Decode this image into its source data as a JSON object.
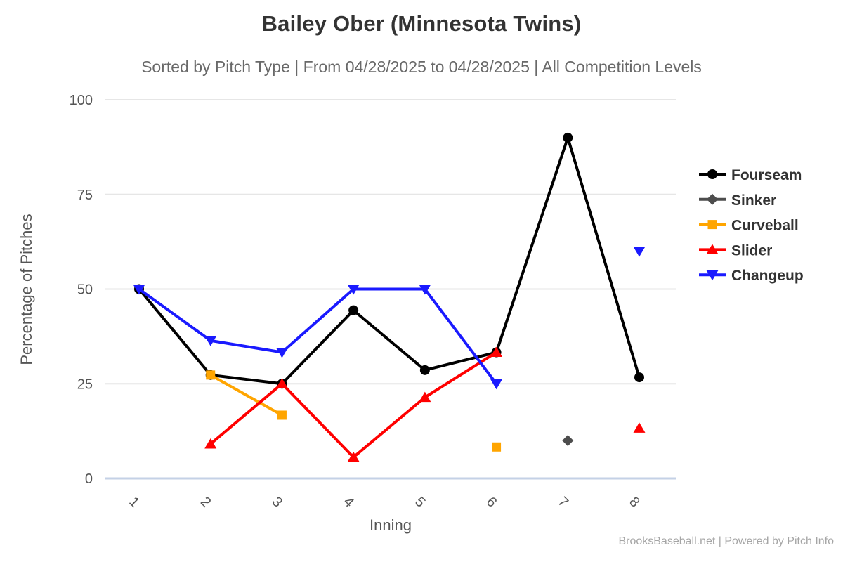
{
  "header": {
    "title": "Bailey Ober (Minnesota Twins)",
    "subtitle": "Sorted by Pitch Type | From 04/28/2025 to 04/28/2025 | All Competition Levels"
  },
  "footer": {
    "text": "BrooksBaseball.net | Powered by Pitch Info"
  },
  "colors": {
    "grid_line": "#e6e6e6",
    "axis_line": "#c4d1e6",
    "tick_text": "#555555",
    "legend_text": "#333333",
    "title_text": "#333333",
    "subtitle_text": "#696969",
    "footer_text": "#a5a5a5"
  },
  "chart_data": {
    "type": "line",
    "title": "Bailey Ober (Minnesota Twins)",
    "xlabel": "Inning",
    "ylabel": "Percentage of Pitches",
    "x_ticks": [
      1,
      2,
      3,
      4,
      5,
      6,
      7,
      8
    ],
    "y_ticks": [
      0,
      25,
      50,
      75,
      100
    ],
    "ylim": [
      0,
      100
    ],
    "grid": true,
    "legend_position": "right",
    "series": [
      {
        "name": "Fourseam",
        "color": "#000000",
        "marker": "circle",
        "runs": [
          [
            [
              1,
              50
            ],
            [
              2,
              27.3
            ],
            [
              3,
              25
            ],
            [
              4,
              44.4
            ],
            [
              5,
              28.6
            ],
            [
              6,
              33.3
            ],
            [
              7,
              90
            ],
            [
              8,
              26.7
            ]
          ]
        ]
      },
      {
        "name": "Sinker",
        "color": "#4d4d4d",
        "marker": "diamond",
        "runs": [
          [
            [
              7,
              10
            ]
          ]
        ]
      },
      {
        "name": "Curveball",
        "color": "#ffa500",
        "marker": "square",
        "runs": [
          [
            [
              2,
              27.3
            ],
            [
              3,
              16.7
            ]
          ],
          [
            [
              6,
              8.3
            ]
          ]
        ]
      },
      {
        "name": "Slider",
        "color": "#ff0000",
        "marker": "triangle-up",
        "runs": [
          [
            [
              2,
              9.1
            ],
            [
              3,
              25
            ],
            [
              4,
              5.6
            ],
            [
              5,
              21.4
            ],
            [
              6,
              33.3
            ]
          ],
          [
            [
              8,
              13.3
            ]
          ]
        ]
      },
      {
        "name": "Changeup",
        "color": "#1a1aff",
        "marker": "triangle-down",
        "runs": [
          [
            [
              1,
              50
            ],
            [
              2,
              36.4
            ],
            [
              3,
              33.3
            ],
            [
              4,
              50
            ],
            [
              5,
              50
            ],
            [
              6,
              25
            ]
          ],
          [
            [
              8,
              60
            ]
          ]
        ]
      }
    ]
  }
}
